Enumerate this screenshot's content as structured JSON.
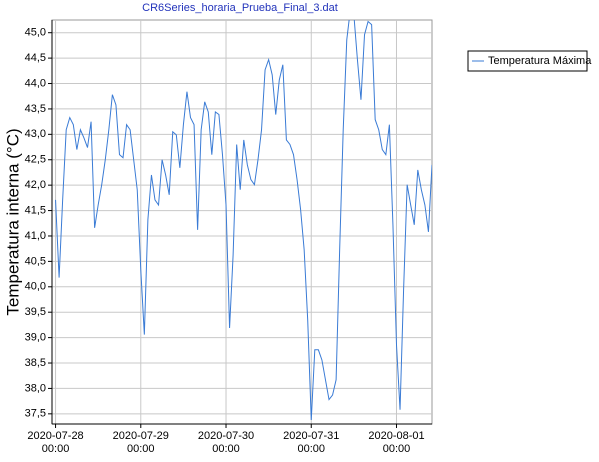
{
  "chart_data": {
    "type": "line",
    "title": "CR6Series_horaria_Prueba_Final_3.dat",
    "y_label": "Temperatura interna (°C)",
    "x": [
      "2020-07-28 00:00",
      "2020-07-28 01:00",
      "2020-07-28 02:00",
      "2020-07-28 03:00",
      "2020-07-28 04:00",
      "2020-07-28 05:00",
      "2020-07-28 06:00",
      "2020-07-28 07:00",
      "2020-07-28 08:00",
      "2020-07-28 09:00",
      "2020-07-28 10:00",
      "2020-07-28 11:00",
      "2020-07-28 12:00",
      "2020-07-28 13:00",
      "2020-07-28 14:00",
      "2020-07-28 15:00",
      "2020-07-28 16:00",
      "2020-07-28 17:00",
      "2020-07-28 18:00",
      "2020-07-28 19:00",
      "2020-07-28 20:00",
      "2020-07-28 21:00",
      "2020-07-28 22:00",
      "2020-07-28 23:00",
      "2020-07-29 00:00",
      "2020-07-29 01:00",
      "2020-07-29 02:00",
      "2020-07-29 03:00",
      "2020-07-29 04:00",
      "2020-07-29 05:00",
      "2020-07-29 06:00",
      "2020-07-29 07:00",
      "2020-07-29 08:00",
      "2020-07-29 09:00",
      "2020-07-29 10:00",
      "2020-07-29 11:00",
      "2020-07-29 12:00",
      "2020-07-29 13:00",
      "2020-07-29 14:00",
      "2020-07-29 15:00",
      "2020-07-29 16:00",
      "2020-07-29 17:00",
      "2020-07-29 18:00",
      "2020-07-29 19:00",
      "2020-07-29 20:00",
      "2020-07-29 21:00",
      "2020-07-29 22:00",
      "2020-07-29 23:00",
      "2020-07-30 00:00",
      "2020-07-30 01:00",
      "2020-07-30 02:00",
      "2020-07-30 03:00",
      "2020-07-30 04:00",
      "2020-07-30 05:00",
      "2020-07-30 06:00",
      "2020-07-30 07:00",
      "2020-07-30 08:00",
      "2020-07-30 09:00",
      "2020-07-30 10:00",
      "2020-07-30 11:00",
      "2020-07-30 12:00",
      "2020-07-30 13:00",
      "2020-07-30 14:00",
      "2020-07-30 15:00",
      "2020-07-30 16:00",
      "2020-07-30 17:00",
      "2020-07-30 18:00",
      "2020-07-30 19:00",
      "2020-07-30 20:00",
      "2020-07-30 21:00",
      "2020-07-30 22:00",
      "2020-07-30 23:00",
      "2020-07-31 00:00",
      "2020-07-31 01:00",
      "2020-07-31 02:00",
      "2020-07-31 03:00",
      "2020-07-31 04:00",
      "2020-07-31 05:00",
      "2020-07-31 06:00",
      "2020-07-31 07:00",
      "2020-07-31 08:00",
      "2020-07-31 09:00",
      "2020-07-31 10:00",
      "2020-07-31 11:00",
      "2020-07-31 12:00",
      "2020-07-31 13:00",
      "2020-07-31 14:00",
      "2020-07-31 15:00",
      "2020-07-31 16:00",
      "2020-07-31 17:00",
      "2020-07-31 18:00",
      "2020-07-31 19:00",
      "2020-07-31 20:00",
      "2020-07-31 21:00",
      "2020-07-31 22:00",
      "2020-07-31 23:00",
      "2020-08-01 00:00",
      "2020-08-01 01:00",
      "2020-08-01 02:00",
      "2020-08-01 03:00",
      "2020-08-01 04:00",
      "2020-08-01 05:00",
      "2020-08-01 06:00",
      "2020-08-01 07:00",
      "2020-08-01 08:00",
      "2020-08-01 09:00",
      "2020-08-01 10:00"
    ],
    "series": [
      {
        "name": "Temperatura Máxima",
        "color": "#3a7bd5",
        "values": [
          41.71,
          40.18,
          41.71,
          43.09,
          43.33,
          43.19,
          42.7,
          43.09,
          42.93,
          42.74,
          43.25,
          41.16,
          41.61,
          42.01,
          42.5,
          43.09,
          43.78,
          43.58,
          42.6,
          42.54,
          43.19,
          43.09,
          42.5,
          41.91,
          40.33,
          39.06,
          41.32,
          42.2,
          41.71,
          41.61,
          42.5,
          42.2,
          41.81,
          43.05,
          42.99,
          42.34,
          43.19,
          43.84,
          43.33,
          43.19,
          41.12,
          43.09,
          43.64,
          43.44,
          42.6,
          43.44,
          43.39,
          42.6,
          41.61,
          39.19,
          40.63,
          42.8,
          41.91,
          42.89,
          42.4,
          42.11,
          42.01,
          42.5,
          43.09,
          44.27,
          44.47,
          44.17,
          43.39,
          44.07,
          44.37,
          42.89,
          42.8,
          42.6,
          42.11,
          41.52,
          40.73,
          39.35,
          37.38,
          38.76,
          38.76,
          38.56,
          38.17,
          37.78,
          37.87,
          38.17,
          40.73,
          43.09,
          44.86,
          45.45,
          45.35,
          44.47,
          43.68,
          44.96,
          45.22,
          45.16,
          43.29,
          43.09,
          42.7,
          42.6,
          43.19,
          41.22,
          38.86,
          37.58,
          39.94,
          42.01,
          41.61,
          41.22,
          42.3,
          41.91,
          41.61,
          41.08,
          42.4
        ]
      }
    ],
    "xlim": [
      "2020-07-27 23:00",
      "2020-08-01 10:00"
    ],
    "xticks": [
      "2020-07-28 00:00",
      "2020-07-29 00:00",
      "2020-07-30 00:00",
      "2020-07-31 00:00",
      "2020-08-01 00:00"
    ],
    "ylim": [
      37.3,
      45.25
    ],
    "yticks": [
      {
        "value": 37.5,
        "label": "37,5"
      },
      {
        "value": 38,
        "label": "38,0"
      },
      {
        "value": 38.5,
        "label": "38,5"
      },
      {
        "value": 39,
        "label": "39,0"
      },
      {
        "value": 39.5,
        "label": "39,5"
      },
      {
        "value": 40,
        "label": "40,0"
      },
      {
        "value": 40.5,
        "label": "40,5"
      },
      {
        "value": 41,
        "label": "41,0"
      },
      {
        "value": 41.5,
        "label": "41,5"
      },
      {
        "value": 42,
        "label": "42,0"
      },
      {
        "value": 42.5,
        "label": "42,5"
      },
      {
        "value": 43,
        "label": "43,0"
      },
      {
        "value": 43.5,
        "label": "43,5"
      },
      {
        "value": 44,
        "label": "44,0"
      },
      {
        "value": 44.5,
        "label": "44,5"
      },
      {
        "value": 45,
        "label": "45,0"
      }
    ],
    "grid": true,
    "legend": "upper-right"
  }
}
